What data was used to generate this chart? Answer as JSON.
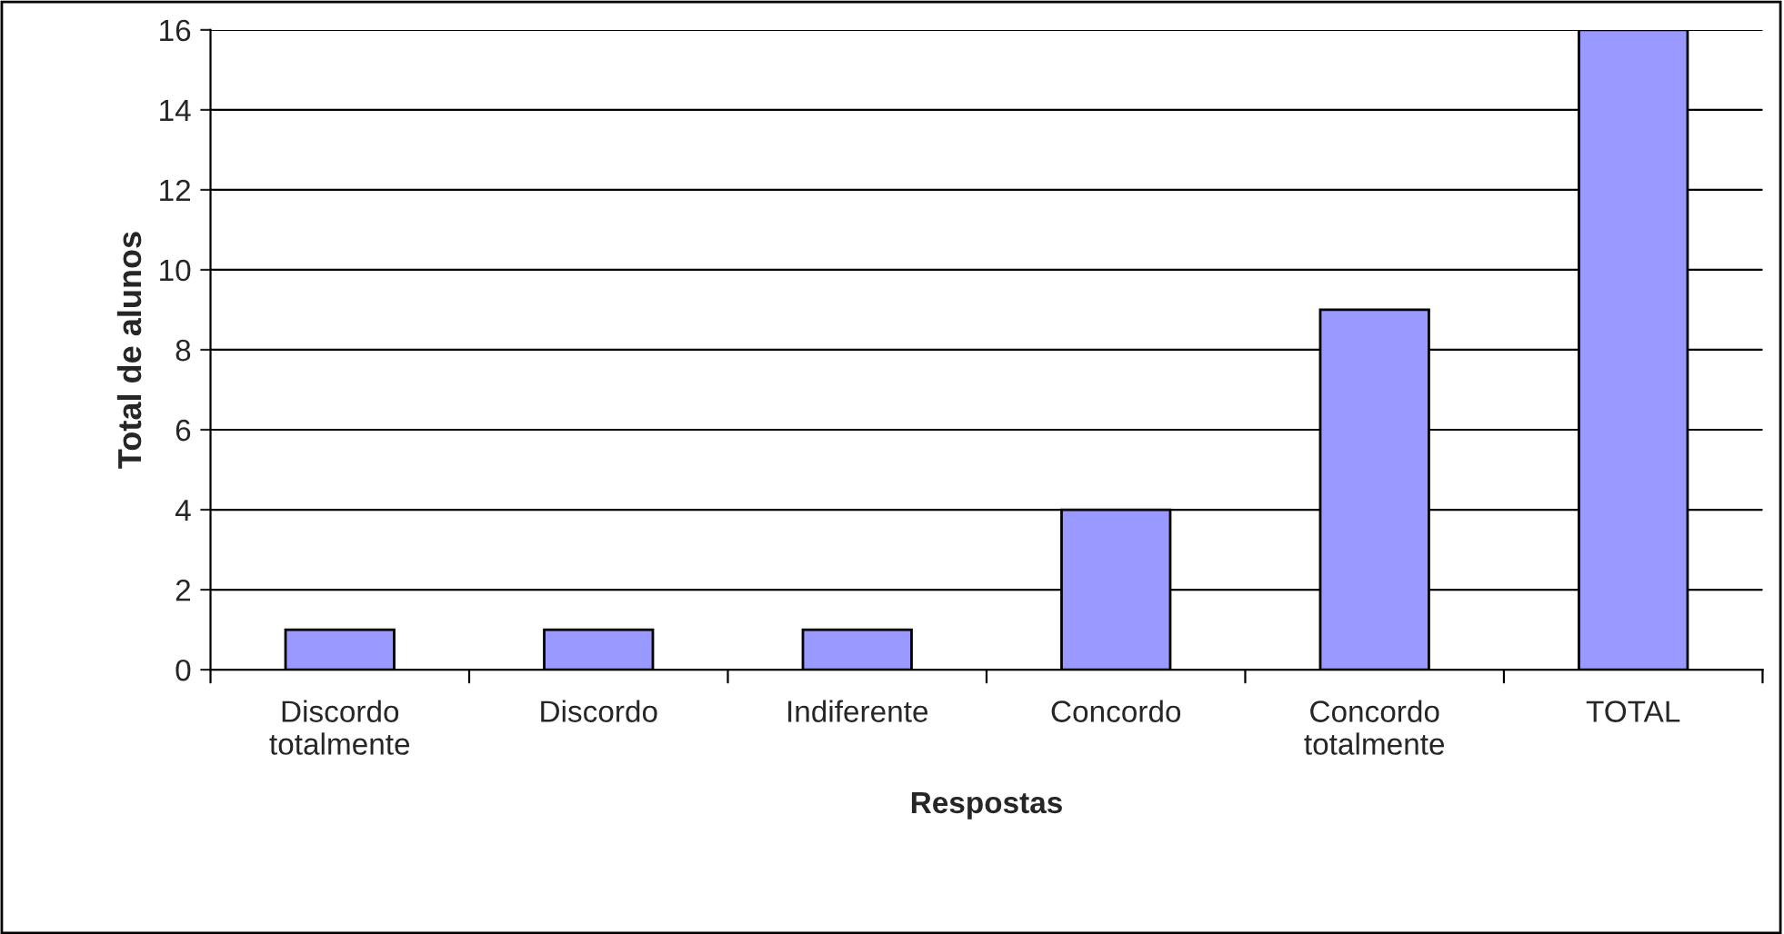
{
  "chart_data": {
    "type": "bar",
    "xlabel": "Respostas",
    "ylabel": "Total de alunos",
    "categories": [
      "Discordo\ntotalmente",
      "Discordo",
      "Indiferente",
      "Concordo",
      "Concordo\ntotalmente",
      "TOTAL"
    ],
    "values": [
      1,
      1,
      1,
      4,
      9,
      16
    ],
    "color": "#9999ff",
    "ylim": [
      0,
      16
    ],
    "yticks": [
      0,
      2,
      4,
      6,
      8,
      10,
      12,
      14,
      16
    ],
    "grid": "y",
    "legend": false
  }
}
